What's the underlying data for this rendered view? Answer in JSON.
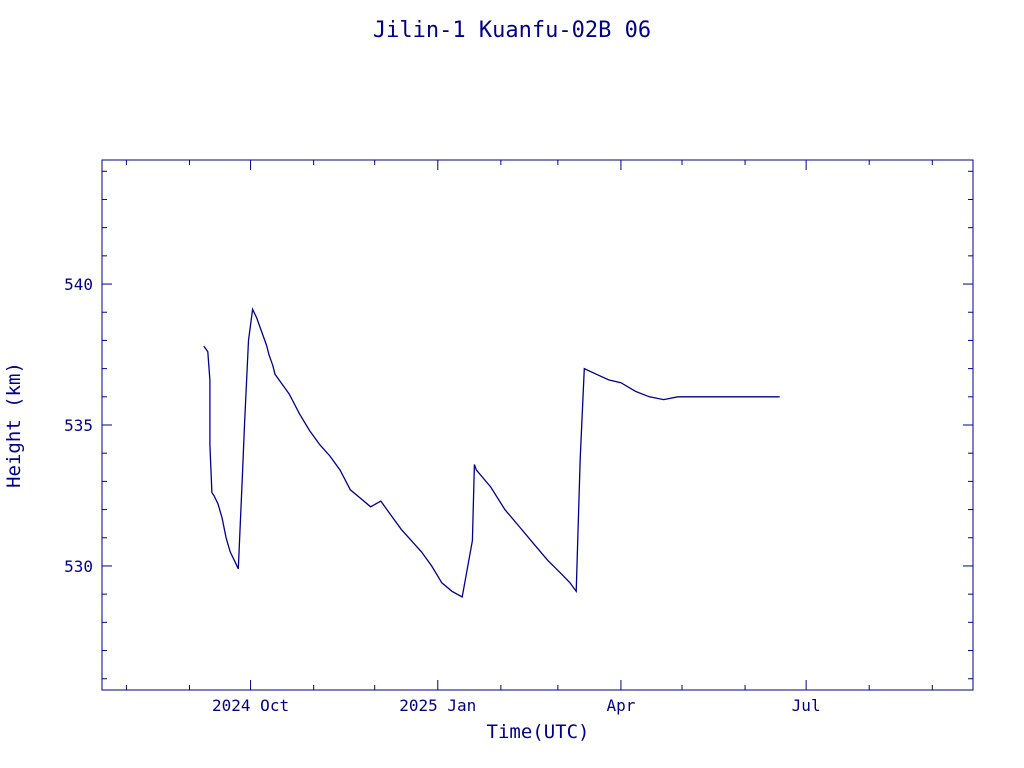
{
  "chart_data": {
    "type": "line",
    "title": "Jilin-1 Kuanfu-02B 06",
    "xlabel": "Time(UTC)",
    "ylabel": "Height (km)",
    "x_tick_labels": [
      "2024 Oct",
      "2025 Jan",
      "Apr",
      "Jul"
    ],
    "y_tick_labels": [
      "530",
      "535",
      "540"
    ],
    "xlim": [
      "2024-07-20",
      "2025-09-21"
    ],
    "ylim": [
      525.6,
      544.4
    ],
    "grid": false,
    "colors": {
      "line": "#00008b",
      "axes": "#00008b",
      "text": "#00008b"
    },
    "series": [
      {
        "x": [
          "2024-09-08",
          "2024-09-09",
          "2024-09-10",
          "2024-09-11",
          "2024-09-11",
          "2024-09-12",
          "2024-09-13",
          "2024-09-15",
          "2024-09-17",
          "2024-09-19",
          "2024-09-21",
          "2024-09-23",
          "2024-09-25",
          "2024-09-27",
          "2024-09-28",
          "2024-09-30",
          "2024-10-02",
          "2024-10-04",
          "2024-10-06",
          "2024-10-08",
          "2024-10-09",
          "2024-10-10",
          "2024-10-11",
          "2024-10-12",
          "2024-10-13",
          "2024-10-16",
          "2024-10-20",
          "2024-10-25",
          "2024-10-30",
          "2024-11-04",
          "2024-11-09",
          "2024-11-14",
          "2024-11-19",
          "2024-11-24",
          "2024-11-29",
          "2024-12-04",
          "2024-12-09",
          "2024-12-14",
          "2024-12-19",
          "2024-12-24",
          "2024-12-29",
          "2025-01-03",
          "2025-01-08",
          "2025-01-13",
          "2025-01-18",
          "2025-01-19",
          "2025-01-20",
          "2025-01-27",
          "2025-02-03",
          "2025-02-10",
          "2025-02-17",
          "2025-02-24",
          "2025-03-03",
          "2025-03-07",
          "2025-03-09",
          "2025-03-10",
          "2025-03-12",
          "2025-03-14",
          "2025-03-20",
          "2025-03-26",
          "2025-04-01",
          "2025-04-08",
          "2025-04-15",
          "2025-04-22",
          "2025-04-29",
          "2025-05-04",
          "2025-05-07",
          "2025-05-08",
          "2025-05-09",
          "2025-05-10",
          "2025-05-17",
          "2025-05-27",
          "2025-06-03",
          "2025-06-10",
          "2025-06-18"
        ],
        "y": [
          537.8,
          537.7,
          537.6,
          536.6,
          534.3,
          532.6,
          532.5,
          532.2,
          531.7,
          531.0,
          530.5,
          530.2,
          529.9,
          533.2,
          535.0,
          538.0,
          539.1,
          538.8,
          538.4,
          538.0,
          537.8,
          537.5,
          537.3,
          537.1,
          536.8,
          536.5,
          536.1,
          535.4,
          534.8,
          534.3,
          533.9,
          533.4,
          532.7,
          532.4,
          532.1,
          532.3,
          531.8,
          531.3,
          530.9,
          530.5,
          530.0,
          529.4,
          529.1,
          528.9,
          530.9,
          533.6,
          533.4,
          532.8,
          532.0,
          531.4,
          530.8,
          530.2,
          529.7,
          529.4,
          529.2,
          529.1,
          533.8,
          537.0,
          536.8,
          536.6,
          536.5,
          536.2,
          536.0,
          535.9,
          536.0,
          536.0,
          536.0,
          536.0,
          536.0,
          536.0,
          536.0,
          536.0,
          536.0,
          536.0,
          536.0
        ]
      }
    ]
  }
}
